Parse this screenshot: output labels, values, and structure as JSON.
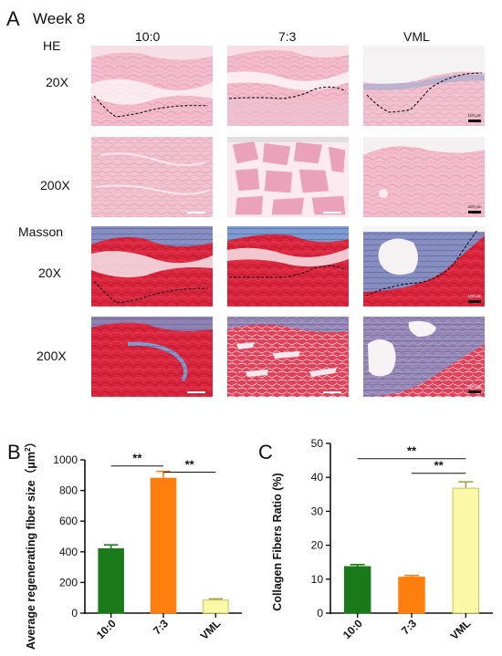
{
  "figure": {
    "panel_a": {
      "letter": "A",
      "title": "Week 8",
      "columns": [
        "10:0",
        "7:3",
        "VML"
      ],
      "stains": [
        "HE",
        "Masson"
      ],
      "magnifications": [
        "20X",
        "200X",
        "20X",
        "200X"
      ],
      "scale_bars": {
        "he_20x_vml": "100 μm",
        "he_200x_vml": "200 μm",
        "masson_20x_vml": "100 μm",
        "masson_200x_vml": "200 μm"
      }
    },
    "panel_b_letter": "B",
    "panel_c_letter": "C"
  },
  "chart_data": [
    {
      "type": "bar",
      "ylabel_main": "Average regenerating fiber size（μm",
      "ylabel_sup": "2",
      "ylabel_close": "）",
      "categories": [
        "10:0",
        "7:3",
        "VML"
      ],
      "values": [
        420,
        880,
        85
      ],
      "errors": [
        25,
        45,
        8
      ],
      "colors": [
        "#1a7a1a",
        "#ff7f0e",
        "#fbf9a8"
      ],
      "yticks": [
        0,
        200,
        400,
        600,
        800,
        1000
      ],
      "ylim": [
        0,
        1000
      ],
      "significance": [
        {
          "from": 0,
          "to": 1,
          "label": "**",
          "y": 960
        },
        {
          "from": 1,
          "to": 2,
          "label": "**",
          "y": 920
        }
      ]
    },
    {
      "type": "bar",
      "ylabel": "Collagen Fibers Ratio (%)",
      "categories": [
        "10:0",
        "7:3",
        "VML"
      ],
      "values": [
        13.7,
        10.6,
        36.8
      ],
      "errors": [
        0.6,
        0.5,
        1.9
      ],
      "colors": [
        "#1a7a1a",
        "#ff7f0e",
        "#fbf9a8"
      ],
      "yticks": [
        0,
        10,
        20,
        30,
        40,
        50
      ],
      "ylim": [
        0,
        50
      ],
      "significance": [
        {
          "from": 0,
          "to": 2,
          "label": "**",
          "y": 45.5
        },
        {
          "from": 1,
          "to": 2,
          "label": "**",
          "y": 41.2
        }
      ]
    }
  ]
}
